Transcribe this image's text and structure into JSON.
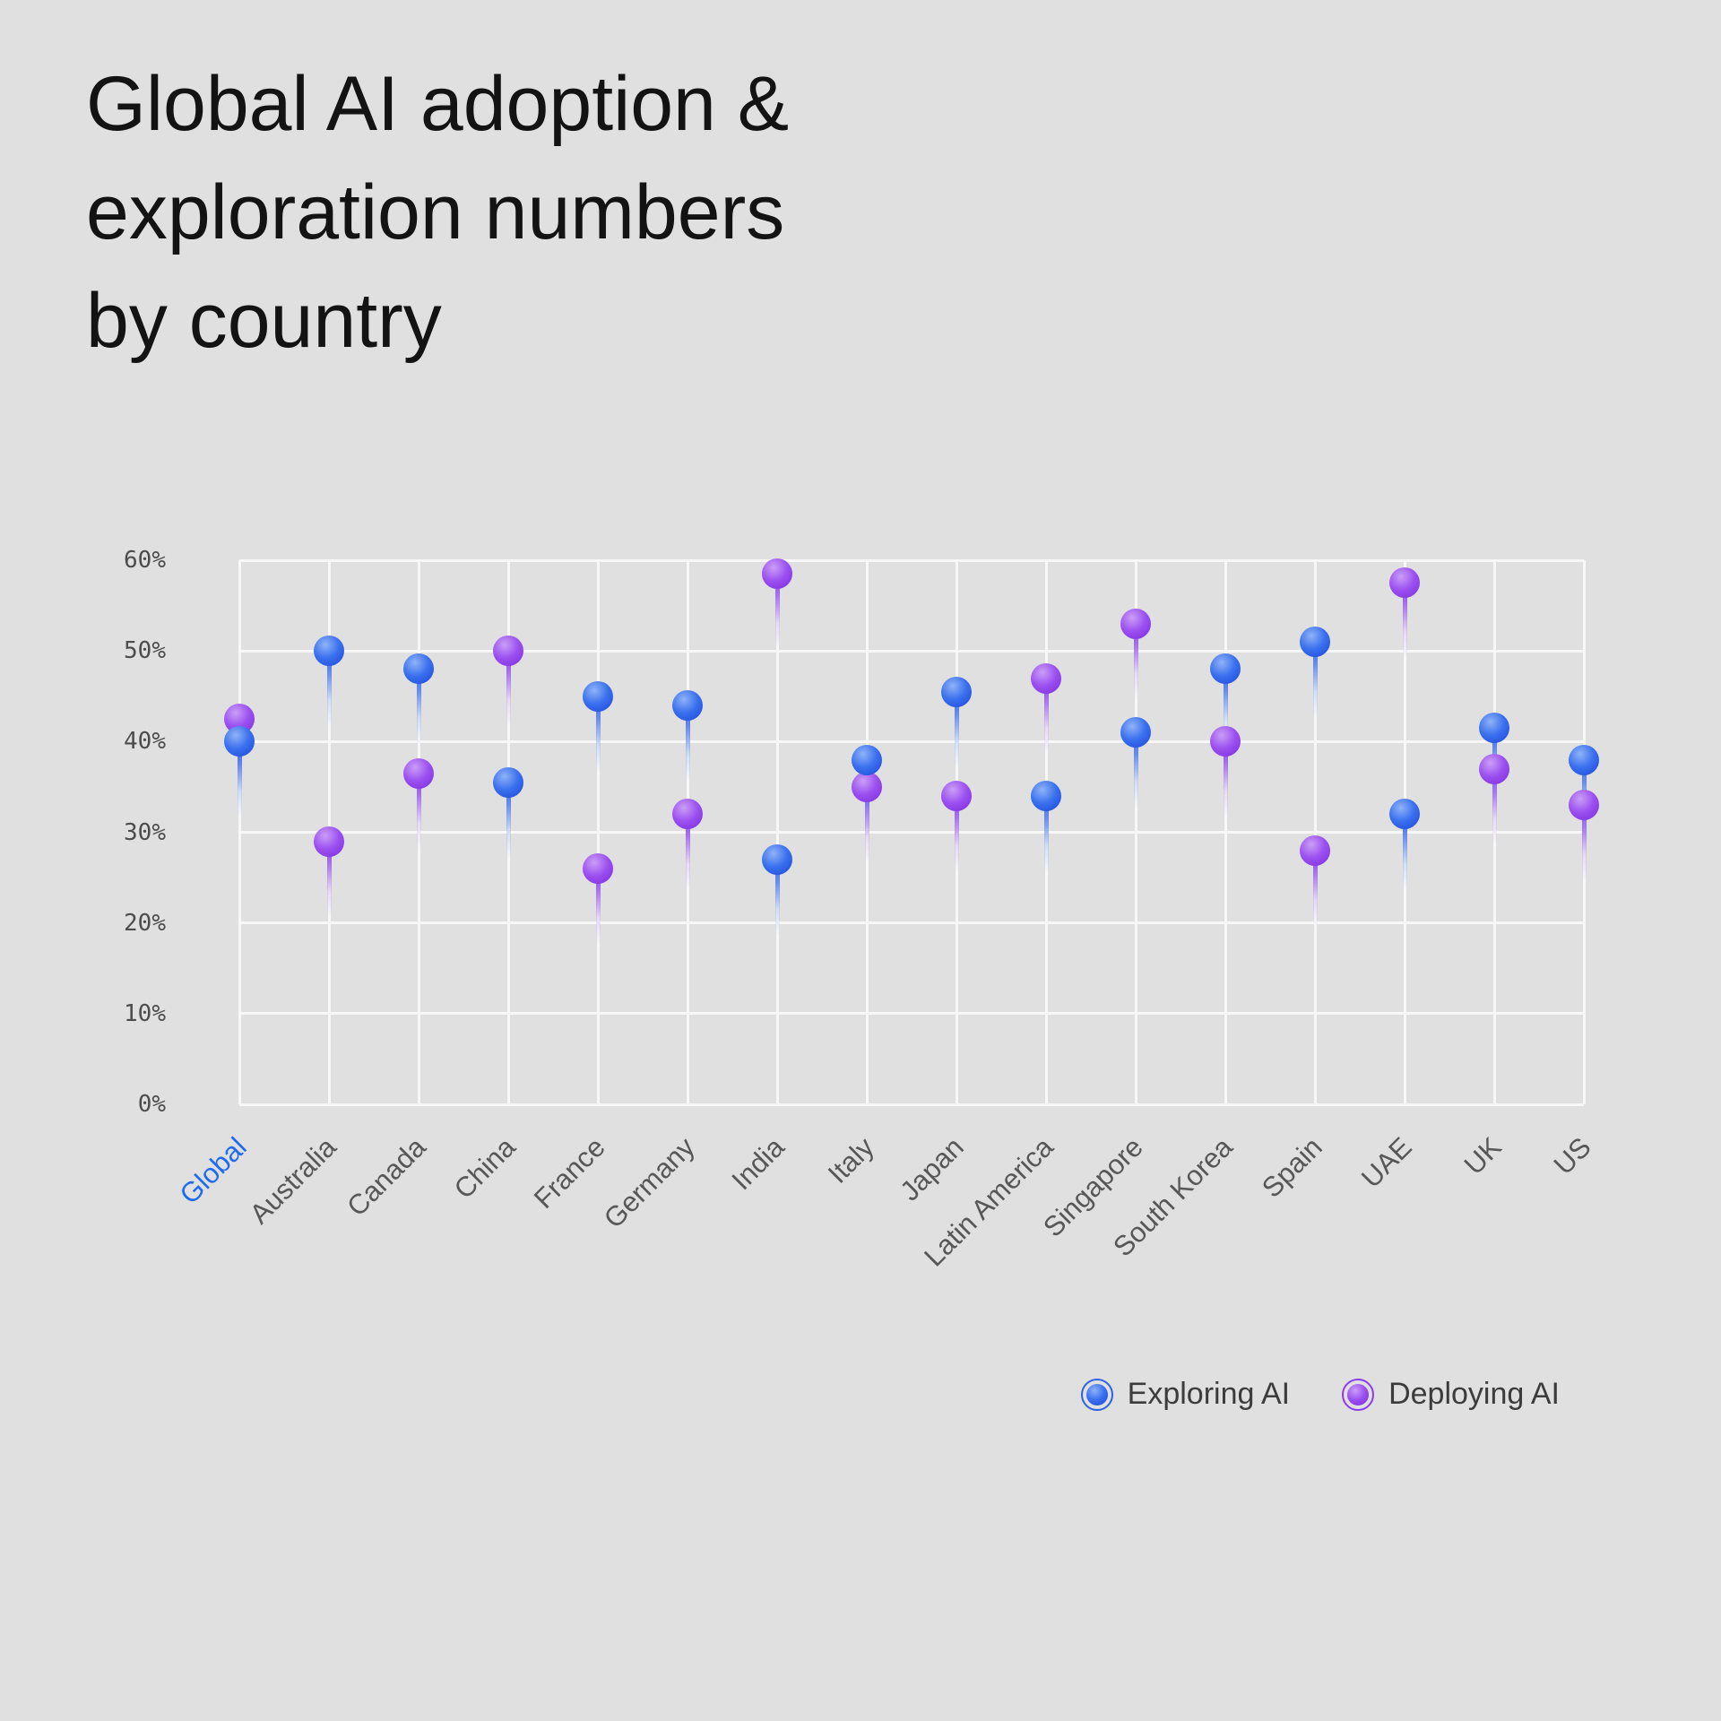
{
  "header": {
    "title": "Global AI adoption &\nexploration numbers\nby country"
  },
  "chart_data": {
    "type": "scatter",
    "title": "Global AI adoption & exploration numbers by country",
    "categories": [
      "Global",
      "Australia",
      "Canada",
      "China",
      "France",
      "Germany",
      "India",
      "Italy",
      "Japan",
      "Latin America",
      "Singapore",
      "South Korea",
      "Spain",
      "UAE",
      "UK",
      "US"
    ],
    "highlight_category": "Global",
    "series": [
      {
        "name": "Exploring AI",
        "color": "#2f6ae8",
        "values": [
          40,
          50,
          48,
          35.5,
          45,
          44,
          27,
          38,
          45.5,
          34,
          41,
          48,
          51,
          32,
          41.5,
          38
        ]
      },
      {
        "name": "Deploying AI",
        "color": "#9140ee",
        "values": [
          42.5,
          29,
          36.5,
          50,
          26,
          32,
          58.5,
          35,
          34,
          47,
          53,
          40,
          28,
          57.5,
          37,
          33
        ]
      }
    ],
    "y_axis": {
      "tick_labels": [
        "0%",
        "10%",
        "20%",
        "30%",
        "40%",
        "50%",
        "60%"
      ],
      "tick_values": [
        0,
        10,
        20,
        30,
        40,
        50,
        60
      ],
      "min": 0,
      "max": 60
    },
    "grid": true,
    "legend_position": "bottom-right"
  },
  "colors": {
    "background": "#e0e0e0",
    "grid": "#f7f7f7",
    "title_text": "#131313",
    "axis_tick_text": "#4c4c4c",
    "category_text": "#575757",
    "highlight_category_text": "#1f6bf0",
    "legend_text": "#3c3c3c",
    "exploring": "#2f6ae8",
    "deploying": "#9140ee"
  }
}
